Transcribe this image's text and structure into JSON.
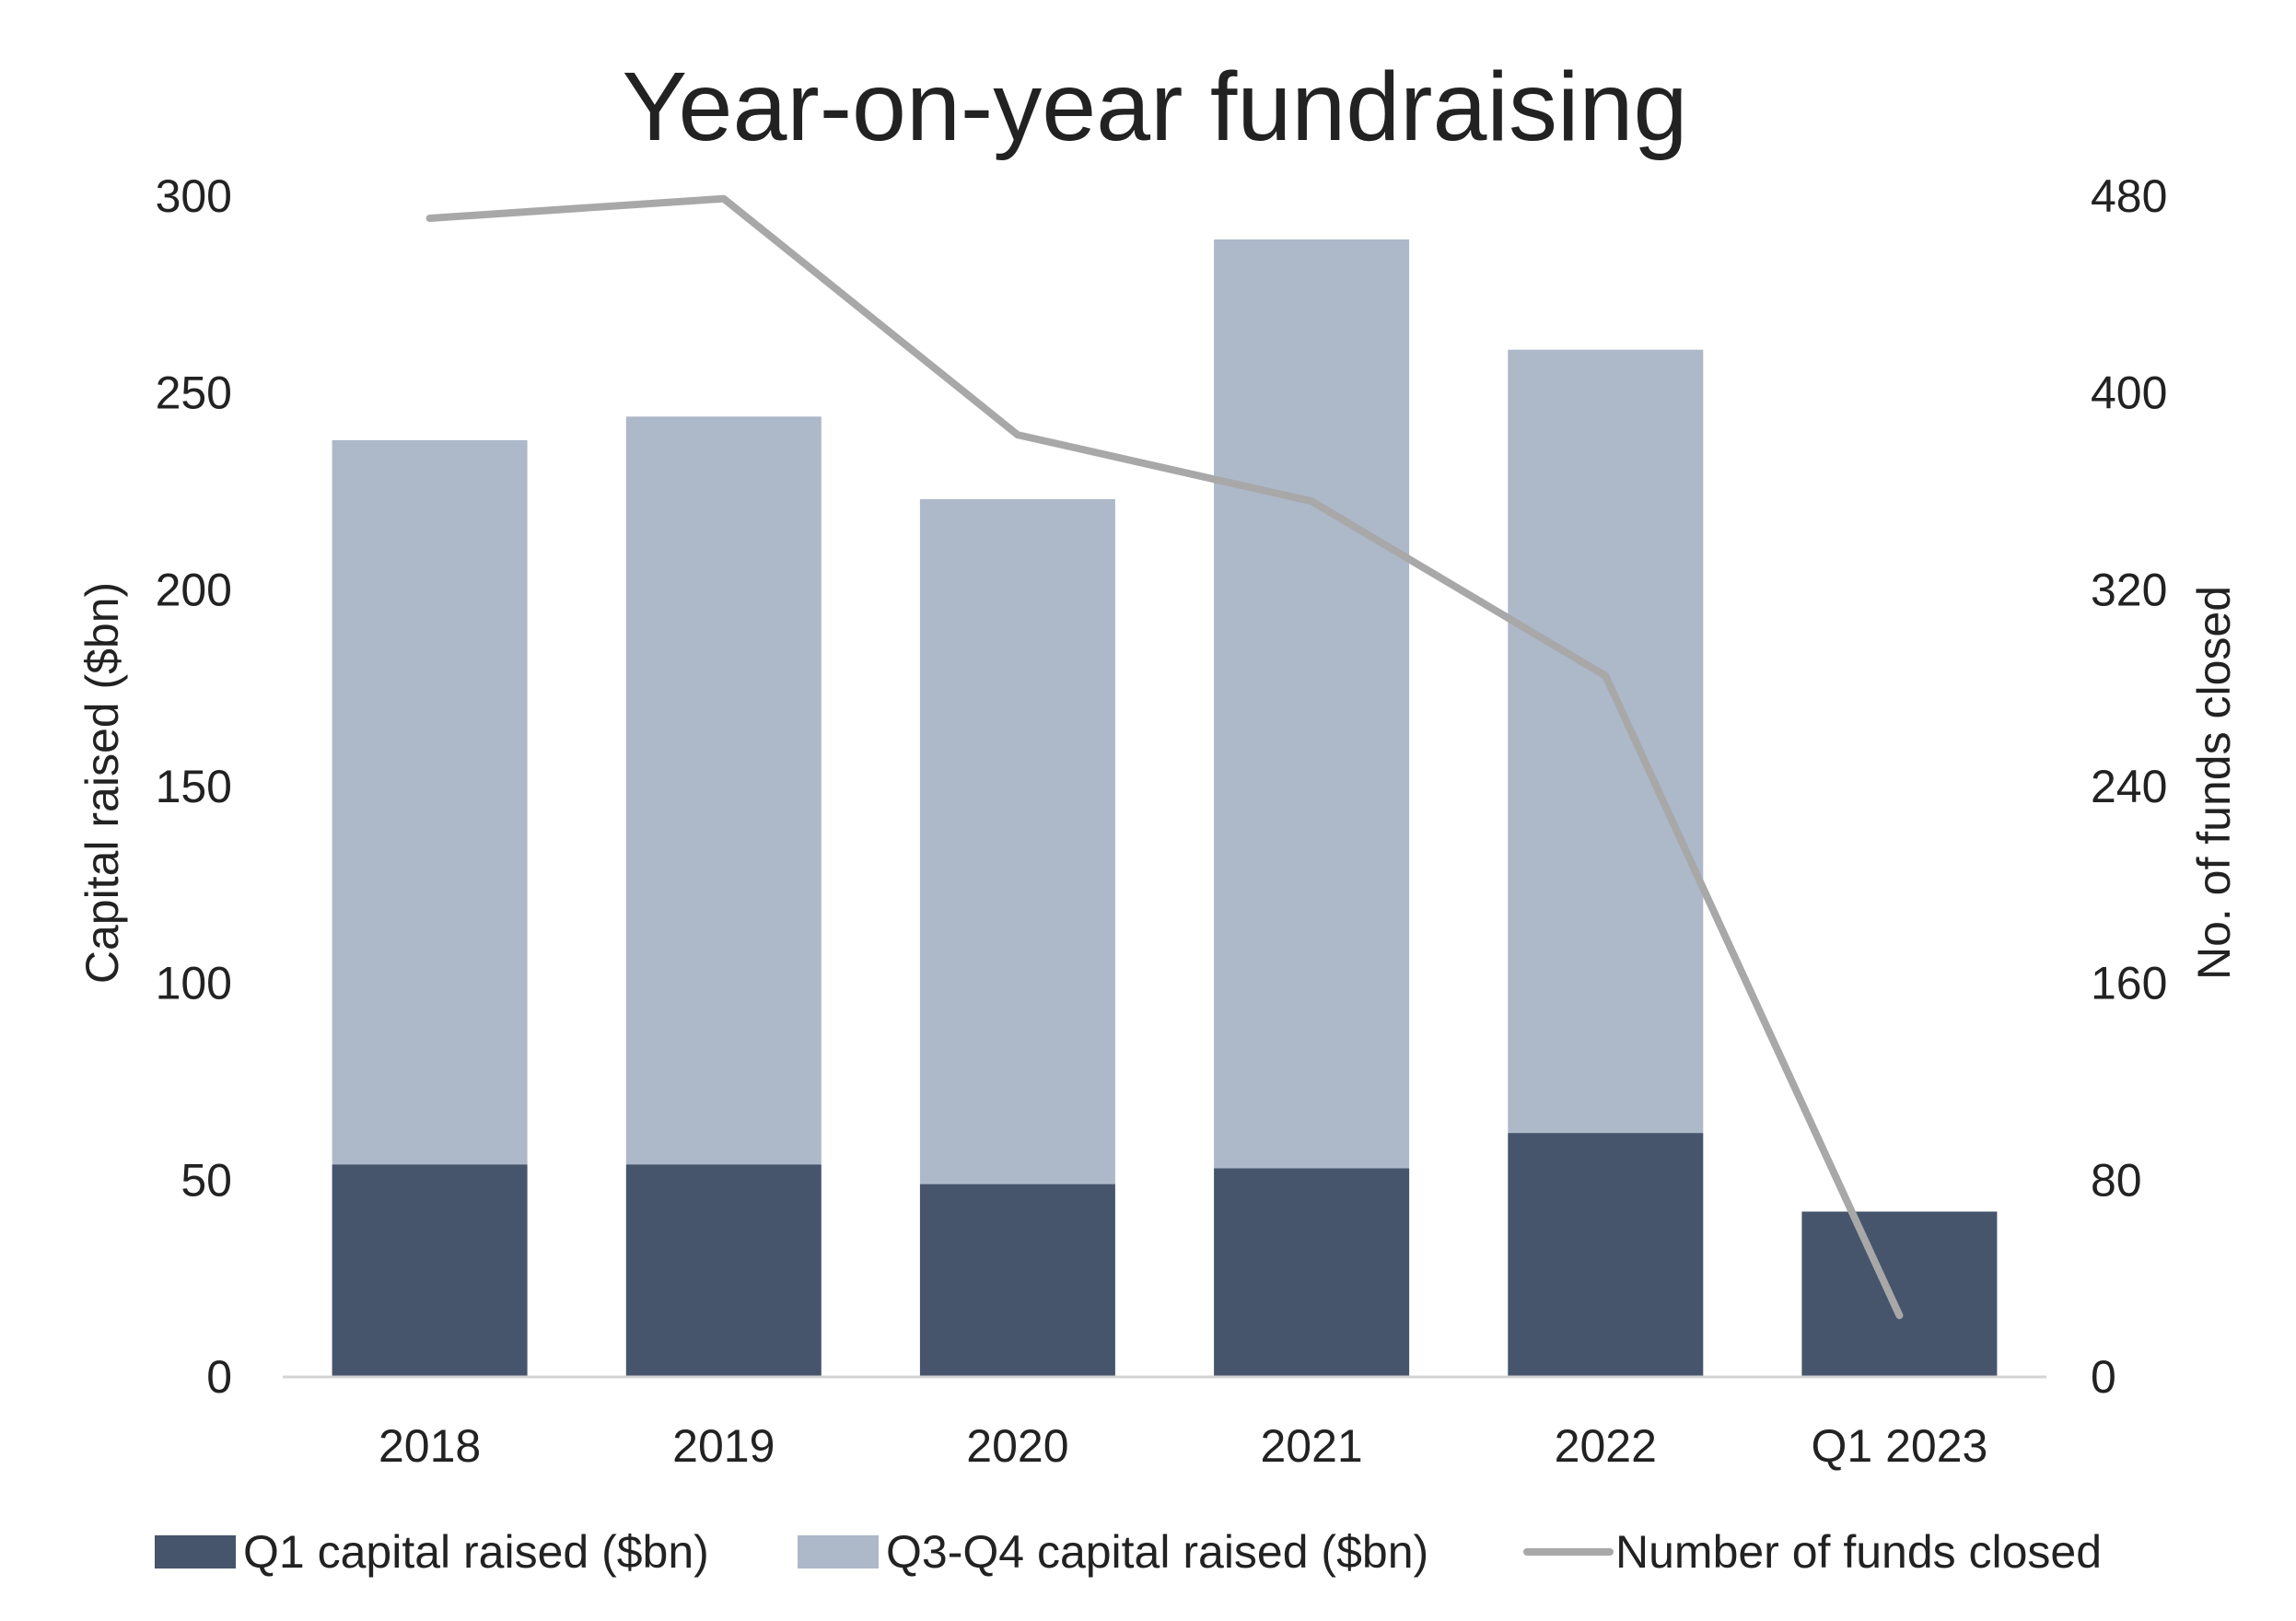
{
  "chart_data": {
    "type": "bar",
    "title": "Year-on-year fundraising",
    "categories": [
      "2018",
      "2019",
      "2020",
      "2021",
      "2022",
      "Q1 2023"
    ],
    "series": [
      {
        "name": "Q1 capital raised ($bn)",
        "kind": "stacked-bar",
        "axis": "left",
        "color": "#46556c",
        "values": [
          54,
          54,
          49,
          53,
          62,
          42
        ]
      },
      {
        "name": "Q3-Q4 capital raised ($bn)",
        "kind": "stacked-bar",
        "axis": "left",
        "color": "#adb8c9",
        "values": [
          184,
          190,
          174,
          236,
          199,
          0
        ]
      },
      {
        "name": "Number of funds closed",
        "kind": "line",
        "axis": "right",
        "color": "#a8a8a8",
        "values": [
          471,
          479,
          383,
          356,
          285,
          25
        ]
      }
    ],
    "y_left": {
      "label": "Capital raised ($bn)",
      "lim": [
        0,
        300
      ],
      "ticks": [
        "0",
        "50",
        "100",
        "150",
        "200",
        "250",
        "300"
      ]
    },
    "y_right": {
      "label": "No. of funds closed",
      "lim": [
        0,
        480
      ],
      "ticks": [
        "0",
        "80",
        "160",
        "240",
        "320",
        "400",
        "480"
      ]
    },
    "grid": false,
    "legend_position": "bottom"
  }
}
